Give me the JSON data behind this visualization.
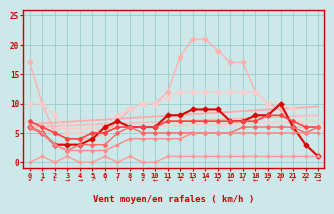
{
  "x": [
    0,
    1,
    2,
    3,
    4,
    5,
    6,
    7,
    8,
    9,
    10,
    11,
    12,
    13,
    14,
    15,
    16,
    17,
    18,
    19,
    20,
    21,
    22,
    23
  ],
  "lines": [
    {
      "y": [
        17,
        10,
        5,
        4,
        4,
        4,
        5,
        7,
        9,
        10,
        10,
        12,
        18,
        21,
        21,
        19,
        17,
        17,
        12,
        10,
        9,
        6,
        6,
        6
      ],
      "color": "#ffb0b0",
      "lw": 1.0,
      "marker": "D",
      "ms": 2.5
    },
    {
      "y": [
        10,
        10,
        8,
        5,
        5,
        5,
        6,
        8,
        9,
        10,
        10,
        11,
        12,
        12,
        12,
        12,
        12,
        12,
        12,
        10,
        10,
        9,
        6,
        6
      ],
      "color": "#ffcccc",
      "lw": 1.0,
      "marker": "D",
      "ms": 2.5
    },
    {
      "y": [
        6,
        5,
        3,
        3,
        3,
        4,
        6,
        7,
        6,
        6,
        6,
        8,
        8,
        9,
        9,
        9,
        7,
        7,
        8,
        8,
        10,
        6,
        3,
        1
      ],
      "color": "#dd0000",
      "lw": 1.5,
      "marker": "D",
      "ms": 2.5
    },
    {
      "y": [
        7,
        6,
        5,
        4,
        4,
        5,
        5,
        6,
        6,
        6,
        6,
        7,
        7,
        7,
        7,
        7,
        7,
        7,
        7,
        8,
        8,
        7,
        6,
        6
      ],
      "color": "#ff4444",
      "lw": 1.2,
      "marker": "D",
      "ms": 2.0
    },
    {
      "y": [
        6,
        5,
        3,
        2,
        3,
        3,
        3,
        5,
        6,
        5,
        5,
        5,
        5,
        5,
        5,
        5,
        5,
        6,
        6,
        6,
        6,
        6,
        5,
        6
      ],
      "color": "#ff6666",
      "lw": 1.0,
      "marker": "D",
      "ms": 2.0
    },
    {
      "y": [
        6,
        5,
        3,
        2,
        2,
        2,
        2,
        3,
        4,
        4,
        4,
        4,
        4,
        5,
        5,
        5,
        5,
        5,
        5,
        5,
        5,
        5,
        5,
        5
      ],
      "color": "#ff8888",
      "lw": 1.0,
      "marker": "D",
      "ms": 1.5
    },
    {
      "y": [
        0,
        1,
        0,
        1,
        0,
        0,
        1,
        0,
        1,
        0,
        0,
        1,
        1,
        1,
        1,
        1,
        1,
        1,
        1,
        1,
        1,
        1,
        1,
        1
      ],
      "color": "#ff9999",
      "lw": 1.0,
      "marker": "D",
      "ms": 1.5
    }
  ],
  "trend_lines": [
    {
      "x0": 0,
      "x1": 23,
      "y0": 6.5,
      "y1": 9.5,
      "color": "#ffaaaa",
      "lw": 1.3
    },
    {
      "x0": 0,
      "x1": 23,
      "y0": 6.0,
      "y1": 8.0,
      "color": "#ffbbbb",
      "lw": 1.3
    },
    {
      "x0": 0,
      "x1": 23,
      "y0": 5.5,
      "y1": 7.0,
      "color": "#ffcccc",
      "lw": 1.3
    }
  ],
  "bg_color": "#cce8e8",
  "grid_color": "#99cccc",
  "axis_color": "#cc0000",
  "xlabel": "Vent moyen/en rafales ( km/h )",
  "xlabel_color": "#cc0000",
  "tick_color": "#cc0000",
  "ylim": [
    -1,
    26
  ],
  "xlim": [
    -0.5,
    23.5
  ],
  "yticks": [
    0,
    5,
    10,
    15,
    20,
    25
  ],
  "xticks": [
    0,
    1,
    2,
    3,
    4,
    5,
    6,
    7,
    8,
    9,
    10,
    11,
    12,
    13,
    14,
    15,
    16,
    17,
    18,
    19,
    20,
    21,
    22,
    23
  ],
  "arrow_chars": [
    "↙",
    "↙",
    "↓",
    "→",
    "→",
    "↗",
    "↑",
    "↑",
    "↓",
    "↙",
    "←",
    "↙",
    "↓",
    "↓",
    "↓",
    "↙",
    "←",
    "↓",
    "←",
    "↙",
    "↓",
    "↙",
    "↓",
    "→"
  ]
}
